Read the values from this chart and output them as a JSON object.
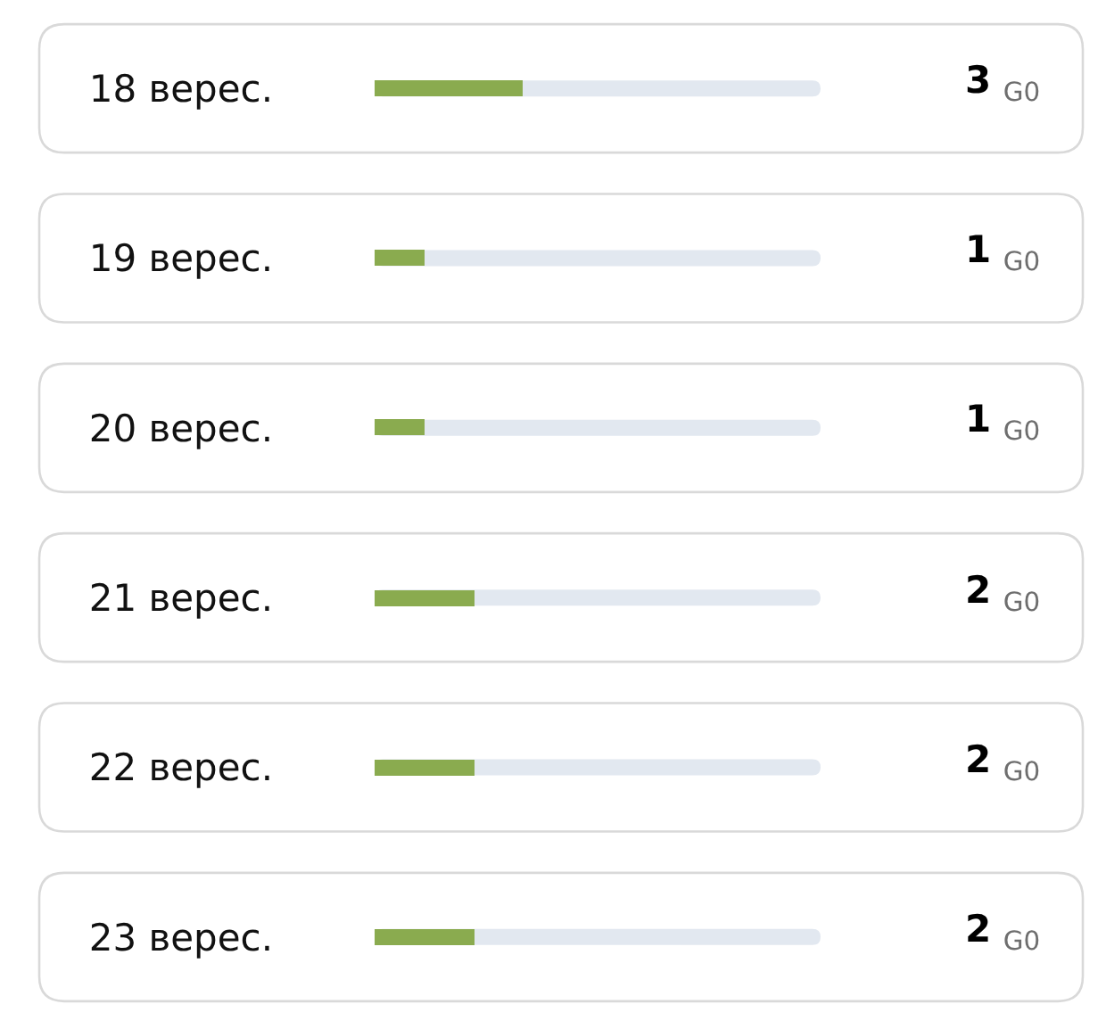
{
  "chart_data": {
    "type": "bar",
    "orientation": "horizontal",
    "categories": [
      "18 верес.",
      "19 верес.",
      "20 верес.",
      "21 верес.",
      "22 верес.",
      "23 верес."
    ],
    "values": [
      3,
      1,
      1,
      2,
      2,
      2
    ],
    "color": "#8aab4f",
    "xlim": [
      0,
      9
    ],
    "value_labels": [
      "3 $_{G0}$",
      "1 $_{G0}$",
      "1 $_{G0}$",
      "2 $_{G0}$",
      "2 $_{G0}$",
      "2 $_{G0}$"
    ],
    "tick_labels": "y"
  }
}
